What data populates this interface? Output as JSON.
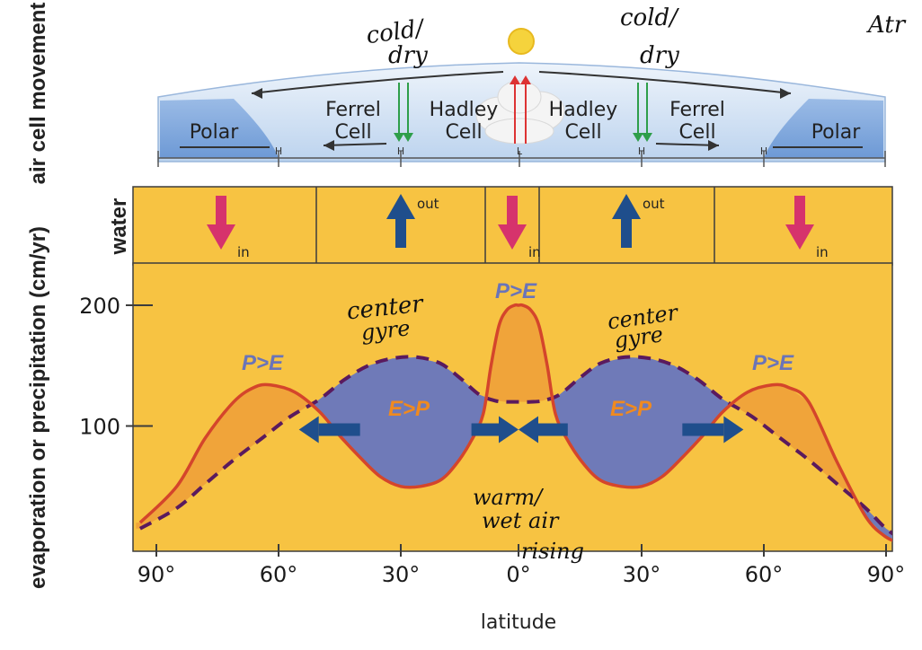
{
  "labels": {
    "air_cell_movement": "air cell movement",
    "water": "water",
    "y_axis": "evaporation or precipitation (cm/yr)",
    "x_axis": "latitude"
  },
  "cells": [
    {
      "id": "polar-left",
      "lines": [
        "Polar"
      ]
    },
    {
      "id": "ferrel-left",
      "lines": [
        "Ferrel",
        "Cell"
      ]
    },
    {
      "id": "hadley-left",
      "lines": [
        "Hadley",
        "Cell"
      ]
    },
    {
      "id": "hadley-right",
      "lines": [
        "Hadley",
        "Cell"
      ]
    },
    {
      "id": "ferrel-right",
      "lines": [
        "Ferrel",
        "Cell"
      ]
    },
    {
      "id": "polar-right",
      "lines": [
        "Polar"
      ]
    }
  ],
  "pressure_marks": [
    "H",
    "H",
    "L",
    "H",
    "H"
  ],
  "water_flow": [
    {
      "dir": "in",
      "label": "in",
      "color": "#d6336c"
    },
    {
      "dir": "out",
      "label": "out",
      "color": "#1f4e8c"
    },
    {
      "dir": "in",
      "label": "in",
      "color": "#d6336c"
    },
    {
      "dir": "out",
      "label": "out",
      "color": "#1f4e8c"
    },
    {
      "dir": "in",
      "label": "in",
      "color": "#d6336c"
    }
  ],
  "regimes": {
    "p_gt_e": "P>E",
    "e_gt_p": "E>P"
  },
  "annotations": {
    "cold_dry_left": [
      "cold/",
      "dry"
    ],
    "cold_dry_right": [
      "cold/",
      "dry"
    ],
    "corner": "Atr",
    "center_gyre_left": [
      "center",
      "gyre"
    ],
    "center_gyre_right": [
      "center",
      "gyre"
    ],
    "warm_wet": [
      "warm/",
      "wet air",
      "rising"
    ]
  },
  "colors": {
    "background": "#f7c342",
    "precip_fill": "#f0a43a",
    "evap_fill": "#6f7ab8",
    "precip_line": "#d4452b",
    "evap_line": "#5a1a5e",
    "arrow_blue": "#1f4e8c",
    "regime_blue": "#6a74b8",
    "regime_orange": "#f08a1f"
  },
  "chart_data": {
    "type": "line",
    "xlabel": "latitude",
    "ylabel": "evaporation or precipitation (cm/yr)",
    "x_ticks": [
      "90°",
      "60°",
      "30°",
      "0°",
      "30°",
      "60°",
      "90°"
    ],
    "x_tick_values": [
      -90,
      -60,
      -30,
      0,
      30,
      60,
      90
    ],
    "y_ticks": [
      100,
      200
    ],
    "xlim": [
      -95,
      95
    ],
    "ylim": [
      0,
      230
    ],
    "series": [
      {
        "key": "precip",
        "x": [
          -94,
          -85,
          -78,
          -71,
          -66,
          -62,
          -56,
          -50,
          -45,
          -40,
          -35,
          -30,
          -25,
          -20,
          -16,
          -12,
          -9,
          -7,
          -5,
          -3,
          -1,
          0,
          1,
          3,
          5,
          7,
          9,
          12,
          16,
          20,
          25,
          30,
          35,
          40,
          45,
          50,
          56,
          62,
          66,
          71,
          78,
          85,
          90,
          94
        ],
        "values": [
          20,
          50,
          90,
          120,
          132,
          134,
          128,
          112,
          92,
          74,
          58,
          50,
          50,
          55,
          68,
          88,
          110,
          150,
          183,
          196,
          200,
          200,
          200,
          196,
          183,
          150,
          110,
          88,
          68,
          55,
          50,
          50,
          58,
          74,
          92,
          112,
          128,
          134,
          132,
          120,
          70,
          25,
          8,
          3
        ]
      },
      {
        "key": "evap",
        "x": [
          -94,
          -85,
          -78,
          -71,
          -64,
          -57,
          -50,
          -44,
          -38,
          -32,
          -26,
          -20,
          -15,
          -10,
          -6,
          -3,
          0,
          3,
          6,
          10,
          15,
          20,
          26,
          32,
          38,
          44,
          50,
          57,
          64,
          71,
          78,
          85,
          90,
          94
        ],
        "values": [
          15,
          32,
          52,
          72,
          90,
          108,
          122,
          138,
          150,
          156,
          157,
          152,
          140,
          126,
          121,
          120,
          120,
          120,
          121,
          126,
          140,
          152,
          157,
          156,
          150,
          138,
          122,
          108,
          90,
          72,
          52,
          32,
          15,
          6
        ]
      }
    ],
    "arrows": [
      {
        "from": -40,
        "to": -55,
        "y": 97
      },
      {
        "from": -12,
        "to": 0,
        "y": 97
      },
      {
        "from": 12,
        "to": 0,
        "y": 97
      },
      {
        "from": 40,
        "to": 55,
        "y": 97
      }
    ]
  }
}
